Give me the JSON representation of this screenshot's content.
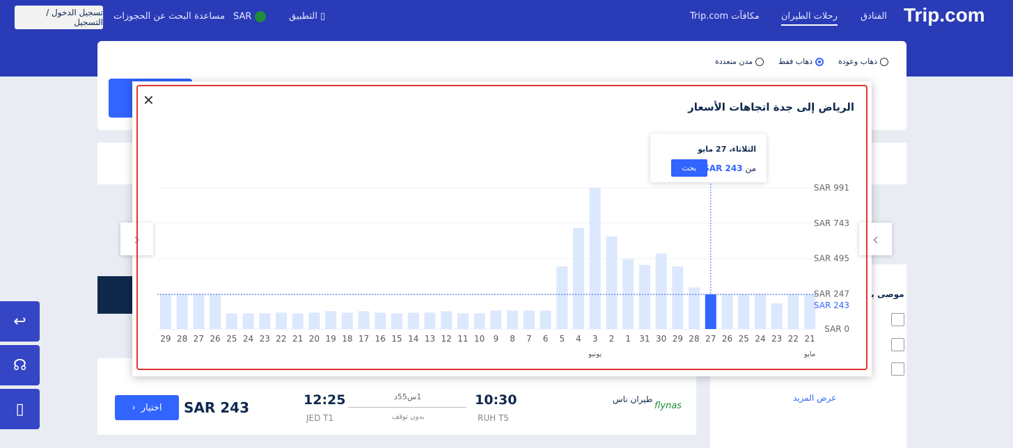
{
  "header": {
    "logo": "Trip.com",
    "nav": [
      "الفنادق",
      "رحلات الطيران",
      "مكافآت Trip.com"
    ],
    "active_nav": "رحلات الطيران",
    "app": "التطبيق",
    "currency": "SAR",
    "help": "مساعدة",
    "find_bookings": "البحث عن الحجوزات",
    "login": "تسجيل الدخول / التسجيل"
  },
  "trip_type": {
    "options": [
      "ذهاب وعودة",
      "ذهاب فقط",
      "مدن متعددة"
    ],
    "selected": "ذهاب فقط"
  },
  "modal": {
    "title": "الرياض إلى جدة اتجاهات الأسعار",
    "tooltip": {
      "date": "الثلاثاء، 27 مايو",
      "price_prefix": "من",
      "price": "SAR 243",
      "search_label": "بحث"
    }
  },
  "chart_data": {
    "type": "bar",
    "categories": [
      "21",
      "22",
      "23",
      "24",
      "25",
      "26",
      "27",
      "28",
      "29",
      "30",
      "31",
      "1",
      "2",
      "3",
      "4",
      "5",
      "6",
      "7",
      "8",
      "9",
      "10",
      "11",
      "12",
      "13",
      "14",
      "15",
      "16",
      "17",
      "18",
      "19",
      "20",
      "21",
      "22",
      "23",
      "24",
      "25",
      "26",
      "27",
      "28",
      "29"
    ],
    "values": [
      243,
      245,
      180,
      243,
      243,
      243,
      243,
      292,
      440,
      530,
      450,
      490,
      650,
      991,
      710,
      440,
      130,
      130,
      130,
      130,
      110,
      110,
      125,
      115,
      115,
      110,
      115,
      125,
      115,
      125,
      115,
      110,
      115,
      110,
      110,
      110,
      243,
      243,
      243,
      243
    ],
    "highlight_index": 6,
    "reference_value": 243,
    "reference_label": "SAR 243",
    "yticks": [
      0,
      247,
      495,
      743,
      991
    ],
    "ytick_labels": [
      "SAR 0",
      "SAR 247",
      "SAR 495",
      "SAR 743",
      "SAR 991"
    ],
    "ylim": [
      0,
      991
    ],
    "month_labels": [
      {
        "index": 0,
        "label": "مايو"
      },
      {
        "index": 13,
        "label": "يونيو"
      }
    ],
    "colors": {
      "bar": "#dce8fd",
      "highlight": "#3264ff",
      "reference": "#3264ff"
    }
  },
  "results": {
    "airline": "طيران ناس",
    "airline_logo": "flynas",
    "depart_time": "10:30",
    "depart_airport": "RUH T5",
    "duration": "1س55د",
    "stops": "بدون توقف",
    "arrive_time": "12:25",
    "arrive_airport": "JED T1",
    "price": "SAR 243",
    "select_label": "اختيار"
  },
  "side": {
    "recommended": "موصى به",
    "show_more": "عرض المزيد"
  }
}
